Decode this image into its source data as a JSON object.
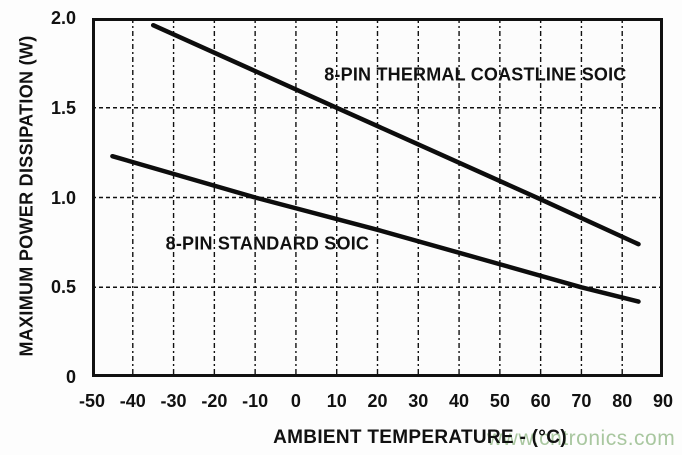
{
  "watermark": {
    "text": "www.cntronics.com",
    "color": "#a9c7a0"
  },
  "chart_data": {
    "type": "line",
    "xlabel": "AMBIENT TEMPERATURE - (°C)",
    "ylabel": "MAXIMUM POWER DISSIPATION (W)",
    "xlim": [
      -50,
      90
    ],
    "ylim": [
      0,
      2
    ],
    "x_ticks": [
      -50,
      -40,
      -30,
      -20,
      -10,
      0,
      10,
      20,
      30,
      40,
      50,
      60,
      70,
      80,
      90
    ],
    "x_tick_labels": [
      "-50",
      "-40",
      "-30",
      "-20",
      "-10",
      "0",
      "10",
      "20",
      "30",
      "40",
      "50",
      "60",
      "70",
      "80",
      "90"
    ],
    "y_ticks": [
      0,
      0.5,
      1,
      1.5,
      2
    ],
    "y_tick_labels": [
      "0",
      "0.5",
      "1.0",
      "1.5",
      "2.0"
    ],
    "grid": "dashed vertical and horizontal gridlines at every tick",
    "legend_position": "inline labels next to lines",
    "line_color": "#0d0d0d",
    "series": [
      {
        "name": "8-PIN THERMAL COASTLINE SOIC",
        "x": [
          -35,
          10,
          60,
          84
        ],
        "y": [
          1.96,
          1.5,
          0.99,
          0.74
        ],
        "label_x": 44,
        "label_y": 1.68
      },
      {
        "name": "8-PIN STANDARD SOIC",
        "x": [
          -45,
          -10,
          20,
          45,
          70,
          84
        ],
        "y": [
          1.23,
          1.0,
          0.82,
          0.66,
          0.5,
          0.42
        ],
        "label_x": -7,
        "label_y": 0.74
      }
    ]
  }
}
